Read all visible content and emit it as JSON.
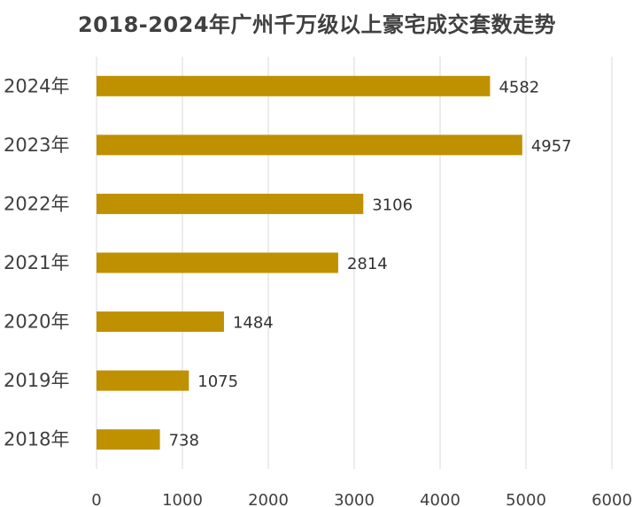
{
  "chart_data": {
    "type": "bar",
    "orientation": "horizontal",
    "title": "2018-2024年广州千万级以上豪宅成交套数走势",
    "categories": [
      "2024年",
      "2023年",
      "2022年",
      "2021年",
      "2020年",
      "2019年",
      "2018年"
    ],
    "values": [
      4582,
      4957,
      3106,
      2814,
      1484,
      1075,
      738
    ],
    "xlim": [
      0,
      6000
    ],
    "xticks": [
      0,
      1000,
      2000,
      3000,
      4000,
      5000,
      6000
    ],
    "xlabel": "",
    "ylabel": "",
    "grid": "vertical",
    "legend": "none",
    "bar_color": "#BF9000"
  }
}
